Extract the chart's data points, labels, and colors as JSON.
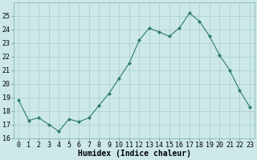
{
  "x": [
    0,
    1,
    2,
    3,
    4,
    5,
    6,
    7,
    8,
    9,
    10,
    11,
    12,
    13,
    14,
    15,
    16,
    17,
    18,
    19,
    20,
    21,
    22,
    23
  ],
  "y": [
    18.8,
    17.3,
    17.5,
    17.0,
    16.5,
    17.4,
    17.2,
    17.5,
    18.4,
    19.3,
    20.4,
    21.5,
    23.2,
    24.1,
    23.8,
    23.5,
    24.1,
    25.2,
    24.6,
    23.5,
    22.1,
    21.0,
    19.5,
    18.3
  ],
  "line_color": "#2e7d6e",
  "marker": "D",
  "marker_size": 2,
  "bg_color": "#cce8e8",
  "grid_color": "#aacece",
  "xlabel": "Humidex (Indice chaleur)",
  "ylim": [
    16,
    26
  ],
  "xlim": [
    -0.5,
    23.5
  ],
  "yticks": [
    16,
    17,
    18,
    19,
    20,
    21,
    22,
    23,
    24,
    25
  ],
  "xticks": [
    0,
    1,
    2,
    3,
    4,
    5,
    6,
    7,
    8,
    9,
    10,
    11,
    12,
    13,
    14,
    15,
    16,
    17,
    18,
    19,
    20,
    21,
    22,
    23
  ],
  "tick_fontsize": 6,
  "xlabel_fontsize": 7,
  "line_width": 0.8
}
